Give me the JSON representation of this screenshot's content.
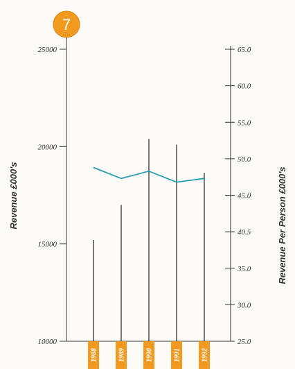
{
  "badge": "7",
  "chart_data": {
    "type": "bar",
    "categories": [
      "1988",
      "1989",
      "1990",
      "1991",
      "1992"
    ],
    "series": [
      {
        "axis": "left",
        "values": [
          15200,
          17000,
          20400,
          20100,
          18650
        ]
      },
      {
        "axis": "right",
        "values": [
          48.8,
          47.3,
          48.3,
          46.8,
          47.3
        ]
      }
    ],
    "ylabel_left": "Revenue £000's",
    "ylabel_right": "Revenue Per Person £000's",
    "ylim_left": [
      10000,
      25000
    ],
    "ylim_right": [
      25.0,
      65.0
    ],
    "left_ticks": [
      "25000",
      "20000",
      "15000",
      "10000"
    ],
    "right_ticks": [
      "65.0",
      "60.0",
      "55.0",
      "50.0",
      "45.0",
      "40.5",
      "35.0",
      "30.0",
      "25.0"
    ],
    "grid": false,
    "colors": {
      "bars": "#333333",
      "line": "#2a9fb0",
      "badge": "#f29a1f",
      "year_boxes": "#f29a1f",
      "axes": "#333333"
    }
  }
}
